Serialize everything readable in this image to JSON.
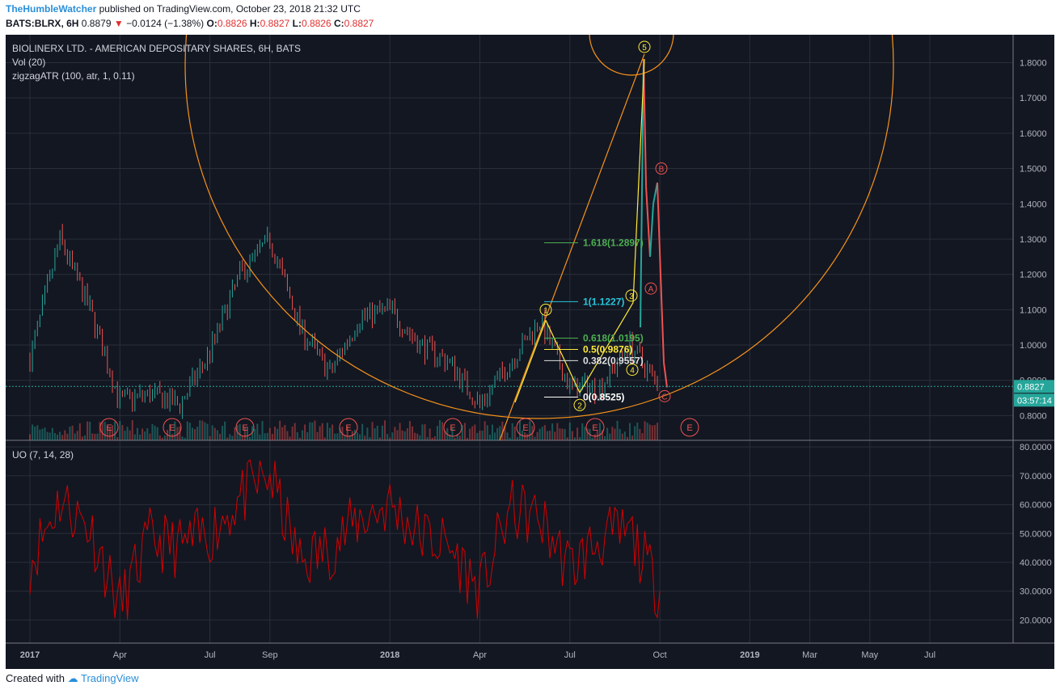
{
  "header": {
    "author": "TheHumbleWatcher",
    "published_text": "published on TradingView.com, October 23, 2018 21:32 UTC",
    "symbol_interval": "BATS:BLRX, 6H",
    "last": "0.8879",
    "change": "−0.0124 (−1.38%)",
    "o_label": "O:",
    "o_val": "0.8826",
    "h_label": "H:",
    "h_val": "0.8827",
    "l_label": "L:",
    "l_val": "0.8826",
    "c_label": "C:",
    "c_val": "0.8827"
  },
  "legend": {
    "title": "BIOLINERX LTD. - AMERICAN DEPOSITARY SHARES, 6H, BATS",
    "vol": "Vol (20)",
    "zigzag": "zigzagATR (100, atr, 1, 0.11)",
    "uo": "UO (7, 14, 28)"
  },
  "footer": {
    "created_with": "Created with",
    "brand": "TradingView"
  },
  "colors": {
    "background": "#131722",
    "grid": "#2a2e39",
    "up": "#26a69a",
    "down": "#ef5350",
    "fib_arc": "#f7931a",
    "uo_line": "#d50000",
    "price_label": "#26a69a"
  },
  "chart_data": [
    {
      "type": "line",
      "name": "BLRX 6H price",
      "x": [
        "2017-01",
        "2017-02",
        "2017-03",
        "2017-04",
        "2017-05",
        "2017-06",
        "2017-07",
        "2017-08",
        "2017-09",
        "2017-10",
        "2017-11",
        "2017-12",
        "2018-01",
        "2018-02",
        "2018-03",
        "2018-04",
        "2018-05",
        "2018-06",
        "2018-07",
        "2018-08",
        "2018-09",
        "2018-10"
      ],
      "series": [
        {
          "values": [
            0.96,
            1.3,
            1.1,
            0.84,
            0.86,
            0.83,
            0.98,
            1.2,
            1.3,
            1.05,
            0.92,
            1.08,
            1.1,
            1.0,
            0.95,
            0.83,
            0.95,
            1.07,
            0.88,
            0.88,
            1.0,
            0.88
          ]
        }
      ],
      "y_axis": {
        "ticks": [
          "0.8000",
          "0.9000",
          "1.0000",
          "1.1000",
          "1.2000",
          "1.3000",
          "1.4000",
          "1.5000",
          "1.6000",
          "1.7000",
          "1.8000"
        ],
        "range": [
          0.73,
          1.84
        ]
      },
      "x_axis": {
        "ticks": [
          "2017",
          "Apr",
          "Jul",
          "Sep",
          "2018",
          "Apr",
          "Jul",
          "Oct",
          "2019",
          "Mar",
          "May",
          "Jul"
        ]
      },
      "last_price": "0.8827",
      "countdown": "03:57:14",
      "fib_levels": [
        {
          "label": "1.618(1.2897)",
          "color": "#4caf50"
        },
        {
          "label": "1(1.1227)",
          "color": "#26c6da"
        },
        {
          "label": "0.618(1.0195)",
          "color": "#4caf50"
        },
        {
          "label": "0.5(0.9876)",
          "color": "#ffeb3b"
        },
        {
          "label": "0.382(0.9557)",
          "color": "#e0e0e0"
        },
        {
          "label": "0(0.8525)",
          "color": "#ffffff"
        }
      ],
      "wave_labels": [
        "1",
        "2",
        "3",
        "4",
        "5",
        "A",
        "B",
        "C"
      ],
      "earnings_labels": [
        "E",
        "E",
        "E",
        "E",
        "E",
        "E",
        "E",
        "E",
        "E"
      ]
    },
    {
      "type": "line",
      "name": "UO (7, 14, 28)",
      "y_axis": {
        "ticks": [
          "20.0000",
          "30.0000",
          "40.0000",
          "50.0000",
          "60.0000",
          "70.0000",
          "80.0000"
        ],
        "range": [
          12,
          82
        ]
      },
      "x": [
        "2017-01",
        "2017-02",
        "2017-03",
        "2017-04",
        "2017-05",
        "2017-06",
        "2017-07",
        "2017-08",
        "2017-09",
        "2017-10",
        "2017-11",
        "2017-12",
        "2018-01",
        "2018-02",
        "2018-03",
        "2018-04",
        "2018-05",
        "2018-06",
        "2018-07",
        "2018-08",
        "2018-09",
        "2018-10"
      ],
      "series": [
        {
          "values": [
            40,
            62,
            52,
            25,
            48,
            45,
            50,
            62,
            70,
            40,
            45,
            55,
            60,
            50,
            45,
            30,
            58,
            55,
            38,
            48,
            50,
            30
          ]
        }
      ]
    }
  ]
}
